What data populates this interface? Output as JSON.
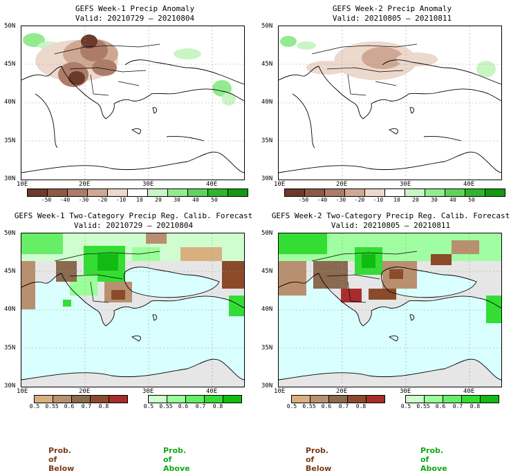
{
  "panels": [
    {
      "title": "GEFS Week-1 Precip Anomaly",
      "valid": "Valid: 20210729 – 20210804"
    },
    {
      "title": "GEFS Week-2 Precip Anomaly",
      "valid": "Valid: 20210805 – 20210811"
    },
    {
      "title": "GEFS Week-1 Two-Category Precip Reg. Calib. Forecast",
      "valid": "Valid: 20210729 – 20210804"
    },
    {
      "title": "GEFS Week-2 Two-Category Precip Reg. Calib. Forecast",
      "valid": "Valid: 20210805 – 20210811"
    }
  ],
  "lat_labels": [
    "50N",
    "45N",
    "40N",
    "35N",
    "30N"
  ],
  "lon_labels": [
    "10E",
    "20E",
    "30E",
    "40E"
  ],
  "anomaly_scale": {
    "labels": [
      "-50",
      "-40",
      "-30",
      "-20",
      "-10",
      "10",
      "20",
      "30",
      "40",
      "50"
    ],
    "colors": [
      "#6b3a2a",
      "#8d5a46",
      "#ad7c68",
      "#cfa894",
      "#ecd8cc",
      "#ffffff",
      "#c9f5c4",
      "#93ea8f",
      "#5fd45b",
      "#2fb52d",
      "#139a12"
    ]
  },
  "prob_below": {
    "labels": [
      "0.5",
      "0.55",
      "0.6",
      "0.7",
      "0.8"
    ],
    "colors": [
      "#d8b080",
      "#b89070",
      "#8a6a50",
      "#8b4a2a",
      "#a82c2c"
    ],
    "caption": "Prob. of Below",
    "caption_color": "#7a3a1a"
  },
  "prob_above": {
    "labels": [
      "0.5",
      "0.55",
      "0.6",
      "0.7",
      "0.8"
    ],
    "colors": [
      "#ccffcc",
      "#99ff99",
      "#66ee66",
      "#33dd33",
      "#11bb11"
    ],
    "caption": "Prob. of Above",
    "caption_color": "#11aa11"
  },
  "colors": {
    "sea": "#d9ffff",
    "land_grey": "#e6e6e6"
  }
}
